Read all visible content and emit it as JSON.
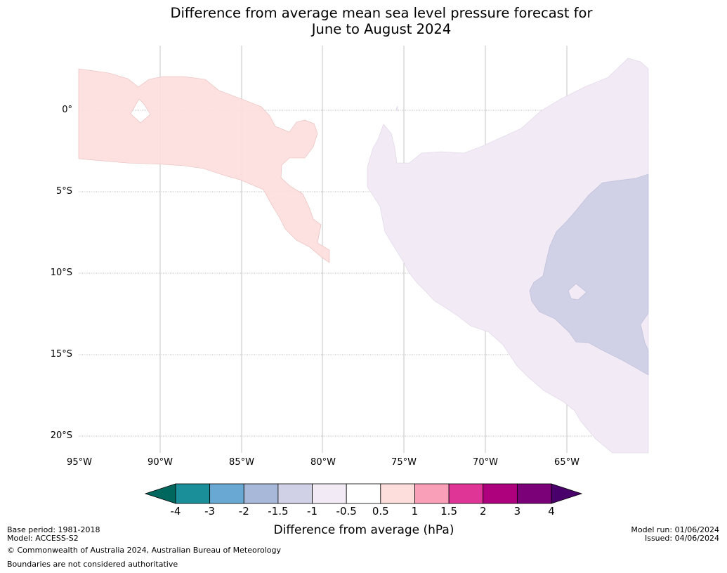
{
  "title": {
    "line1": "Difference from average mean sea level pressure forecast for",
    "line2": "June to August 2024"
  },
  "axes": {
    "lat_labels": [
      "0°",
      "5°S",
      "10°S",
      "15°S",
      "20°S"
    ],
    "lon_labels": [
      "95°W",
      "90°W",
      "85°W",
      "80°W",
      "75°W",
      "70°W",
      "65°W"
    ]
  },
  "colorbar": {
    "title": "Difference from average (hPa)",
    "ticks": [
      "-4",
      "-3",
      "-2",
      "-1.5",
      "-1",
      "-0.5",
      "0.5",
      "1",
      "1.5",
      "2",
      "3",
      "4"
    ],
    "colors": [
      "#1a8f9a",
      "#68a8d2",
      "#a7b8d8",
      "#d0d1e6",
      "#f2eaf5",
      "#ffffff",
      "#fddedd",
      "#f9a0b8",
      "#de3597",
      "#ae017e",
      "#7a0177"
    ],
    "under_color": "#00675f",
    "over_color": "#49006a"
  },
  "footer": {
    "base_period": "Base period: 1981-2018",
    "model": "Model: ACCESS-S2",
    "copyright": "© Commonwealth of Australia 2024, Australian Bureau of Meteorology",
    "boundaries": "Boundaries are not considered authoritative",
    "model_run": "Model run: 01/06/2024",
    "issued": "Issued: 04/06/2024"
  }
}
